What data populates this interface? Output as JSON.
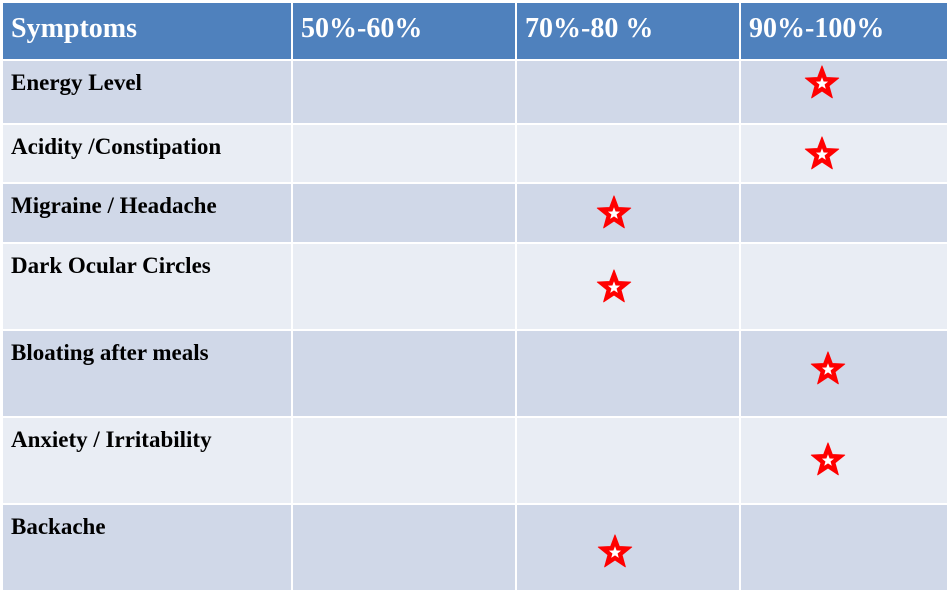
{
  "header": {
    "symptoms": "Symptoms",
    "c1": "50%-60%",
    "c2": "70%-80 %",
    "c3": "90%-100%"
  },
  "rows": [
    {
      "label": "Energy Level",
      "marked": "90%-100%"
    },
    {
      "label": "Acidity /Constipation",
      "marked": "90%-100%"
    },
    {
      "label": "Migraine / Headache",
      "marked": "70%-80 %"
    },
    {
      "label": "Dark Ocular Circles",
      "marked": "70%-80 %"
    },
    {
      "label": "Bloating after meals",
      "marked": "90%-100%"
    },
    {
      "label": "Anxiety / Irritability",
      "marked": "90%-100%"
    },
    {
      "label": "Backache",
      "marked": "70%-80 %"
    }
  ],
  "colors": {
    "header_bg": "#4f81bd",
    "row_dark": "#d0d8e8",
    "row_light": "#e9edf4",
    "star": "#ff0000"
  },
  "icons": {
    "marker": "star-icon"
  }
}
